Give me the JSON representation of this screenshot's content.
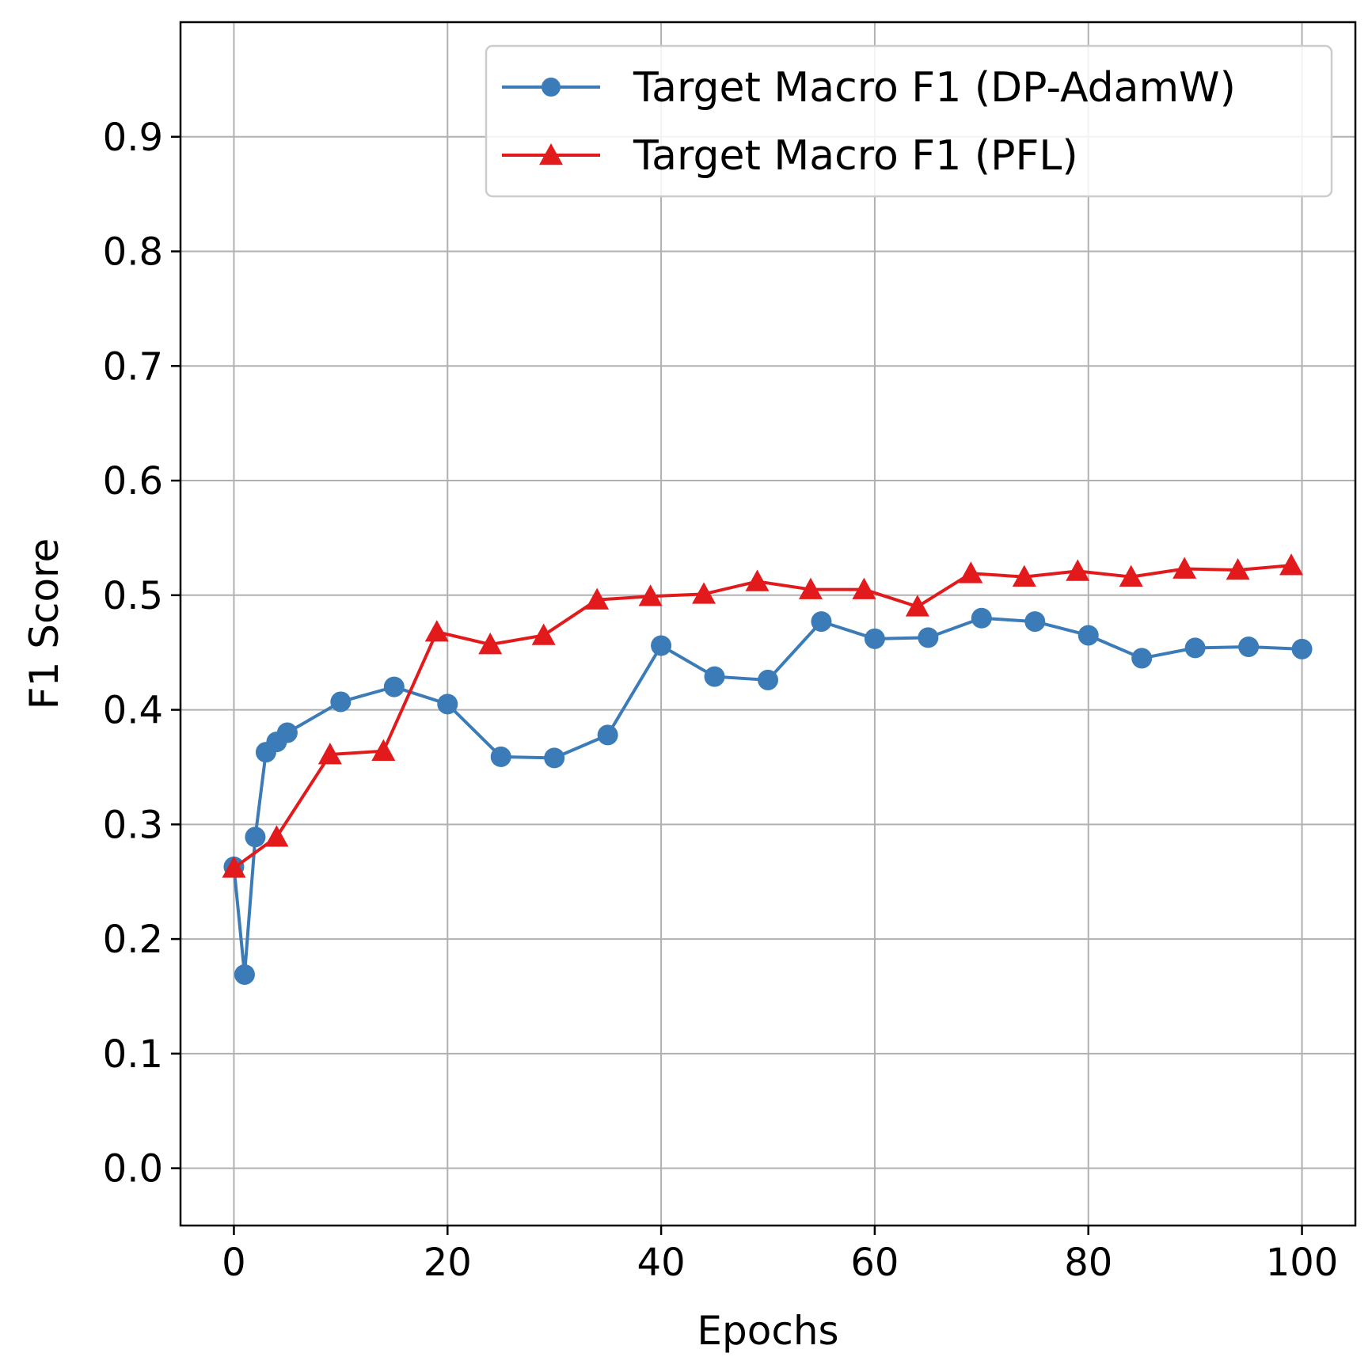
{
  "chart_data": {
    "type": "line",
    "title": "",
    "xlabel": "Epochs",
    "ylabel": "F1 Score",
    "xlim": [
      -5,
      105
    ],
    "ylim": [
      -0.05,
      1.0
    ],
    "xticks": [
      0,
      20,
      40,
      60,
      80,
      100
    ],
    "xtick_labels": [
      "0",
      "20",
      "40",
      "60",
      "80",
      "100"
    ],
    "yticks": [
      0.0,
      0.1,
      0.2,
      0.3,
      0.4,
      0.5,
      0.6,
      0.7,
      0.8,
      0.9
    ],
    "ytick_labels": [
      "0.0",
      "0.1",
      "0.2",
      "0.3",
      "0.4",
      "0.5",
      "0.6",
      "0.7",
      "0.8",
      "0.9"
    ],
    "grid": true,
    "legend_position": "top-right",
    "series": [
      {
        "name": "Target Macro F1 (DP-AdamW)",
        "color": "#3a7bb8",
        "marker": "circle",
        "x": [
          0,
          1,
          2,
          3,
          4,
          5,
          10,
          15,
          20,
          25,
          30,
          35,
          40,
          45,
          50,
          55,
          60,
          65,
          70,
          75,
          80,
          85,
          90,
          95,
          100
        ],
        "y": [
          0.263,
          0.169,
          0.289,
          0.363,
          0.372,
          0.38,
          0.407,
          0.42,
          0.405,
          0.359,
          0.358,
          0.378,
          0.456,
          0.429,
          0.426,
          0.477,
          0.462,
          0.463,
          0.48,
          0.477,
          0.465,
          0.445,
          0.454,
          0.455,
          0.453
        ]
      },
      {
        "name": "Target Macro F1 (PFL)",
        "color": "#e31a1c",
        "marker": "triangle",
        "x": [
          0,
          4,
          9,
          14,
          19,
          24,
          29,
          34,
          39,
          44,
          49,
          54,
          59,
          64,
          69,
          74,
          79,
          84,
          89,
          94,
          99
        ],
        "y": [
          0.262,
          0.289,
          0.361,
          0.364,
          0.468,
          0.457,
          0.465,
          0.496,
          0.499,
          0.501,
          0.512,
          0.505,
          0.505,
          0.49,
          0.519,
          0.516,
          0.521,
          0.516,
          0.523,
          0.522,
          0.526
        ]
      }
    ]
  }
}
